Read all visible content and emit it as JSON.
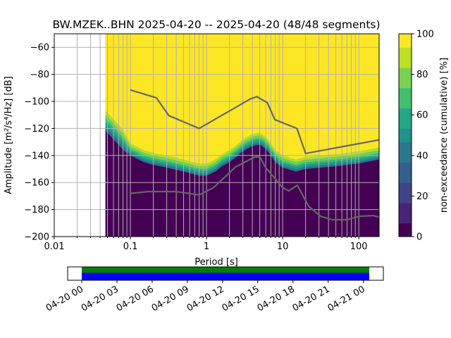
{
  "chart_data": {
    "type": "heatmap",
    "title": "BW.MZEK..BHN   2025-04-20 -- 2025-04-20  (48/48 segments)",
    "xlabel": "Period [s]",
    "ylabel": "Amplitude [m²/s⁴/Hz] [dB]",
    "xscale": "log",
    "xlim": [
      0.01,
      185
    ],
    "ylim": [
      -200,
      -50
    ],
    "xticks": [
      {
        "v": 0.01,
        "label": "0.01"
      },
      {
        "v": 0.1,
        "label": "0.1"
      },
      {
        "v": 1,
        "label": "1"
      },
      {
        "v": 10,
        "label": "10"
      },
      {
        "v": 100,
        "label": "100"
      }
    ],
    "yticks": [
      {
        "v": -60,
        "label": "−60"
      },
      {
        "v": -80,
        "label": "−80"
      },
      {
        "v": -100,
        "label": "−100"
      },
      {
        "v": -120,
        "label": "−120"
      },
      {
        "v": -140,
        "label": "−140"
      },
      {
        "v": -160,
        "label": "−160"
      },
      {
        "v": -180,
        "label": "−180"
      },
      {
        "v": -200,
        "label": "−200"
      }
    ],
    "grid": true,
    "psd_data_start_period": 0.047,
    "psd_level_curve": [
      [
        0.047,
        -122
      ],
      [
        0.06,
        -128
      ],
      [
        0.08,
        -136
      ],
      [
        0.1,
        -140
      ],
      [
        0.15,
        -145
      ],
      [
        0.2,
        -147
      ],
      [
        0.3,
        -149
      ],
      [
        0.5,
        -152
      ],
      [
        0.8,
        -155
      ],
      [
        1,
        -155
      ],
      [
        1.3,
        -152
      ],
      [
        1.6,
        -148
      ],
      [
        2,
        -145
      ],
      [
        2.5,
        -141
      ],
      [
        3,
        -137
      ],
      [
        4,
        -133
      ],
      [
        5,
        -132
      ],
      [
        6,
        -135
      ],
      [
        7,
        -140
      ],
      [
        8,
        -145
      ],
      [
        10,
        -149
      ],
      [
        15,
        -152
      ],
      [
        20,
        -150
      ],
      [
        50,
        -148
      ],
      [
        100,
        -146
      ],
      [
        185,
        -143
      ]
    ],
    "noise_models": [
      {
        "name": "high-noise-model",
        "points": [
          [
            0.1,
            -91.5
          ],
          [
            0.22,
            -97.4
          ],
          [
            0.32,
            -110.5
          ],
          [
            0.8,
            -120
          ],
          [
            3.8,
            -98
          ],
          [
            4.6,
            -96.5
          ],
          [
            6.3,
            -101
          ],
          [
            7.9,
            -113.5
          ],
          [
            15.4,
            -120
          ],
          [
            20,
            -138.5
          ],
          [
            185,
            -128.5
          ]
        ]
      },
      {
        "name": "low-noise-model",
        "points": [
          [
            0.1,
            -168
          ],
          [
            0.17,
            -166.7
          ],
          [
            0.4,
            -166.7
          ],
          [
            0.8,
            -169.2
          ],
          [
            1.24,
            -163.7
          ],
          [
            2.4,
            -148.6
          ],
          [
            4.3,
            -141.1
          ],
          [
            5,
            -141.1
          ],
          [
            6,
            -149
          ],
          [
            10,
            -163.8
          ],
          [
            12,
            -166.2
          ],
          [
            15.6,
            -162.1
          ],
          [
            21.9,
            -177.5
          ],
          [
            31.6,
            -185
          ],
          [
            45,
            -187.5
          ],
          [
            70,
            -187.5
          ],
          [
            101,
            -185
          ],
          [
            154,
            -184.5
          ],
          [
            185,
            -185.5
          ]
        ]
      }
    ],
    "colorbar": {
      "label": "non-exceedance (cumulative) [%]",
      "range": [
        0,
        100
      ],
      "ticks": [
        0,
        20,
        40,
        60,
        80,
        100
      ]
    },
    "timeline": {
      "tick_labels": [
        "04-20 00",
        "04-20 03",
        "04-20 06",
        "04-20 09",
        "04-20 12",
        "04-20 15",
        "04-20 18",
        "04-20 21",
        "04-21 00"
      ],
      "coverage_start_hours": 0,
      "coverage_end_hours": 24.5,
      "range_hours": [
        -1.2,
        25.7
      ],
      "colors": {
        "data": "#008000",
        "processed": "#0000ff"
      }
    }
  }
}
